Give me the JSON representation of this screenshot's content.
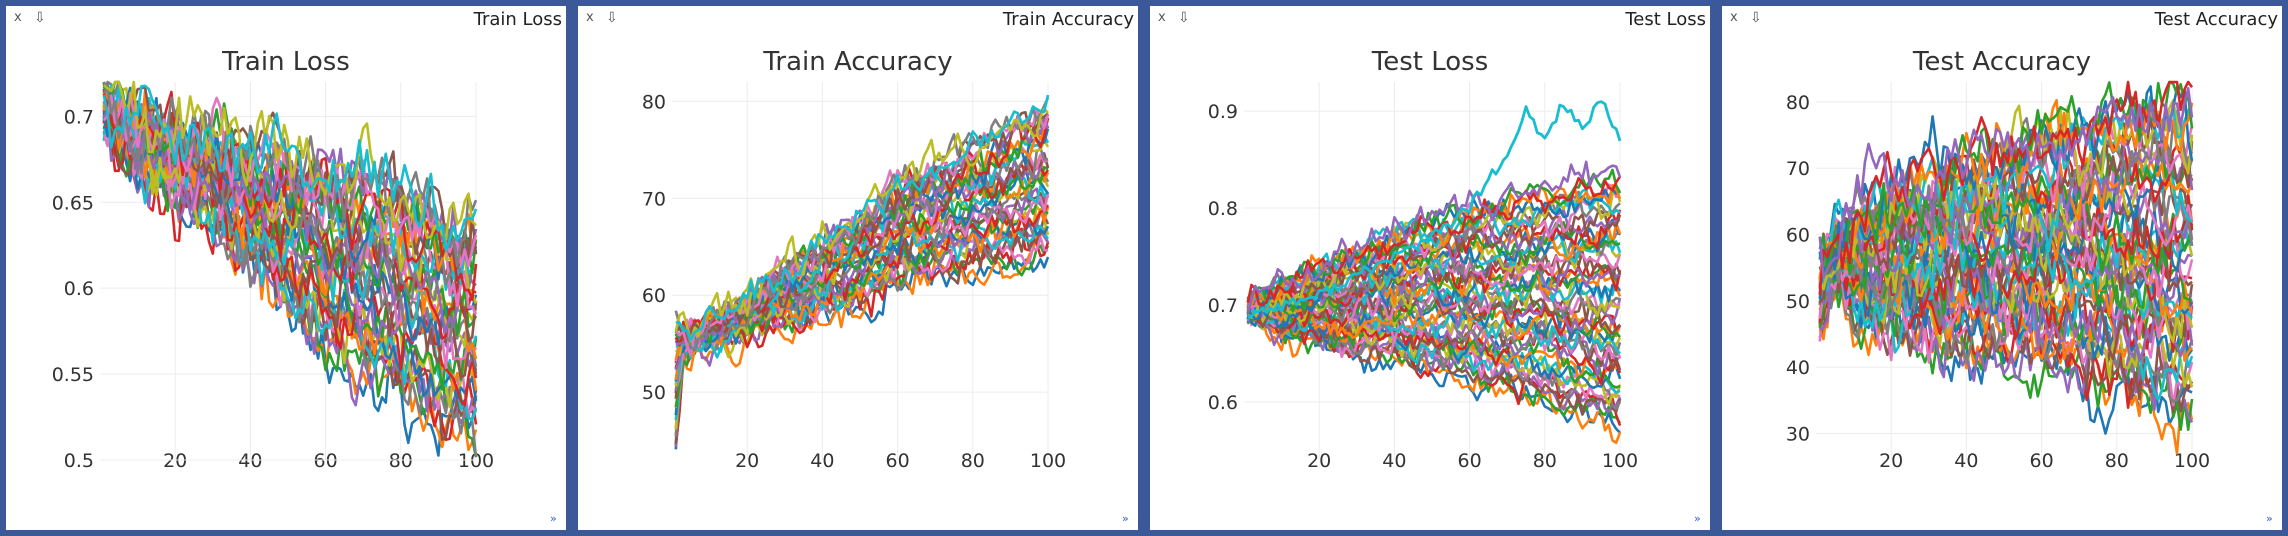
{
  "panes": [
    {
      "name": "Train Loss",
      "close_label": "x",
      "download_label": "⇩",
      "resize_label": "»",
      "chart_data": {
        "type": "line",
        "title": "Train Loss",
        "xlabel": "",
        "ylabel": "",
        "xlim": [
          0,
          100
        ],
        "ylim": [
          0.5,
          0.72
        ],
        "x_ticks": [
          20,
          40,
          60,
          80,
          100
        ],
        "y_ticks": [
          0.5,
          0.55,
          0.6,
          0.65,
          0.7
        ],
        "y_tick_labels": [
          "0.5",
          "0.55",
          "0.6",
          "0.65",
          "0.7"
        ],
        "grid": true,
        "legend": "none",
        "series_count": 40,
        "series_x": [
          1,
          10,
          20,
          30,
          40,
          50,
          60,
          70,
          80,
          90,
          100
        ],
        "series_low": [
          0.7,
          0.67,
          0.66,
          0.64,
          0.61,
          0.59,
          0.57,
          0.55,
          0.54,
          0.52,
          0.51
        ],
        "series_high": [
          0.71,
          0.7,
          0.69,
          0.69,
          0.68,
          0.68,
          0.67,
          0.67,
          0.66,
          0.65,
          0.64
        ],
        "noise": 0.018
      }
    },
    {
      "name": "Train Accuracy",
      "close_label": "x",
      "download_label": "⇩",
      "resize_label": "»",
      "chart_data": {
        "type": "line",
        "title": "Train Accuracy",
        "xlabel": "",
        "ylabel": "",
        "xlim": [
          0,
          100
        ],
        "ylim": [
          43,
          82
        ],
        "x_ticks": [
          20,
          40,
          60,
          80,
          100
        ],
        "y_ticks": [
          50,
          60,
          70,
          80
        ],
        "y_tick_labels": [
          "50",
          "60",
          "70",
          "80"
        ],
        "grid": true,
        "legend": "none",
        "series_count": 40,
        "series_x": [
          1,
          3,
          5,
          10,
          20,
          30,
          40,
          50,
          60,
          70,
          80,
          90,
          100
        ],
        "series_low": [
          44,
          54,
          55,
          55,
          56,
          57,
          58,
          59,
          61,
          62,
          63,
          63,
          64
        ],
        "series_high": [
          58,
          57,
          56,
          57,
          60,
          63,
          66,
          69,
          72,
          74,
          76,
          78,
          80
        ],
        "noise": 1.6
      }
    },
    {
      "name": "Test Loss",
      "close_label": "x",
      "download_label": "⇩",
      "resize_label": "»",
      "chart_data": {
        "type": "line",
        "title": "Test Loss",
        "xlabel": "",
        "ylabel": "",
        "xlim": [
          0,
          100
        ],
        "ylim": [
          0.54,
          0.93
        ],
        "x_ticks": [
          20,
          40,
          60,
          80,
          100
        ],
        "y_ticks": [
          0.6,
          0.7,
          0.8,
          0.9
        ],
        "y_tick_labels": [
          "0.6",
          "0.7",
          "0.8",
          "0.9"
        ],
        "grid": true,
        "legend": "none",
        "series_count": 55,
        "series_x": [
          1,
          10,
          20,
          30,
          40,
          50,
          60,
          70,
          80,
          90,
          100
        ],
        "series_low": [
          0.69,
          0.67,
          0.66,
          0.65,
          0.64,
          0.63,
          0.62,
          0.61,
          0.6,
          0.58,
          0.57
        ],
        "series_high": [
          0.7,
          0.72,
          0.74,
          0.76,
          0.78,
          0.79,
          0.8,
          0.81,
          0.82,
          0.83,
          0.84
        ],
        "noise": 0.014,
        "highlight_series": {
          "x": [
            1,
            10,
            20,
            30,
            40,
            50,
            60,
            65,
            70,
            75,
            80,
            85,
            90,
            95,
            100
          ],
          "y": [
            0.69,
            0.7,
            0.71,
            0.73,
            0.75,
            0.77,
            0.8,
            0.83,
            0.85,
            0.9,
            0.87,
            0.91,
            0.88,
            0.91,
            0.87
          ],
          "color": "#17becf"
        }
      }
    },
    {
      "name": "Test Accuracy",
      "close_label": "x",
      "download_label": "⇩",
      "resize_label": "»",
      "chart_data": {
        "type": "line",
        "title": "Test Accuracy",
        "xlabel": "",
        "ylabel": "",
        "xlim": [
          0,
          100
        ],
        "ylim": [
          26,
          83
        ],
        "x_ticks": [
          20,
          40,
          60,
          80,
          100
        ],
        "y_ticks": [
          30,
          40,
          50,
          60,
          70,
          80
        ],
        "y_tick_labels": [
          "30",
          "40",
          "50",
          "60",
          "70",
          "80"
        ],
        "grid": true,
        "legend": "none",
        "series_count": 55,
        "series_x": [
          1,
          3,
          5,
          10,
          20,
          30,
          40,
          50,
          60,
          70,
          80,
          90,
          100
        ],
        "series_low": [
          46,
          50,
          53,
          48,
          45,
          44,
          42,
          41,
          40,
          38,
          36,
          35,
          34
        ],
        "series_high": [
          56,
          57,
          60,
          64,
          67,
          70,
          72,
          74,
          76,
          78,
          80,
          80,
          80
        ],
        "noise": 4.5
      }
    }
  ],
  "palette": [
    "#1f77b4",
    "#ff7f0e",
    "#2ca02c",
    "#d62728",
    "#9467bd",
    "#8c564b",
    "#e377c2",
    "#7f7f7f",
    "#bcbd22",
    "#17becf"
  ]
}
